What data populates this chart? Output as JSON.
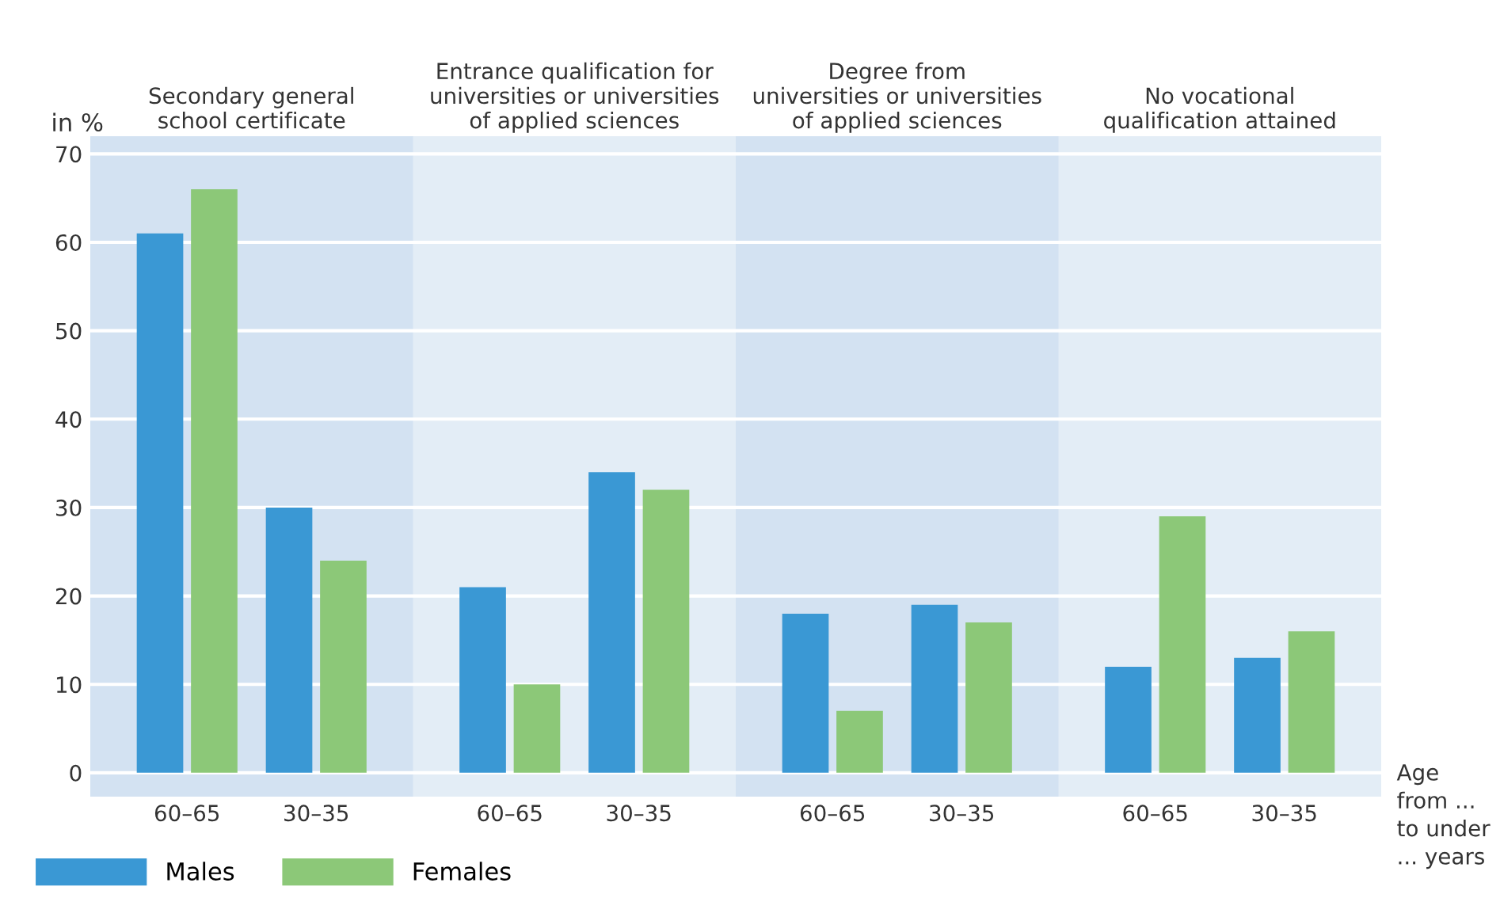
{
  "chart_data": {
    "type": "bar",
    "categories": [
      "60–65",
      "30–35",
      "60–65",
      "30–35",
      "60–65",
      "30–35",
      "60–65",
      "30–35"
    ],
    "series": [
      {
        "name": "Males",
        "color": "#3a98d4",
        "values": [
          61,
          30,
          21,
          34,
          18,
          19,
          12,
          13
        ]
      },
      {
        "name": "Females",
        "color": "#8cc878",
        "values": [
          66,
          24,
          10,
          32,
          7,
          17,
          29,
          16
        ]
      }
    ],
    "ylabel": "in %",
    "xlabel": "Age\nfrom ...\nto under\n... years",
    "annotations": [
      "Secondary general\nschool certificate",
      "Entrance qualification for\nuniversities or universities\nof applied sciences",
      "Degree from\nuniversities or universities\nof applied sciences",
      "No vocational\nqualification attained"
    ],
    "ylim": [
      -2.7,
      72
    ],
    "yticks": [
      0,
      10,
      20,
      30,
      40,
      50,
      60,
      70
    ],
    "grid": "y",
    "legend": "bottom left"
  }
}
